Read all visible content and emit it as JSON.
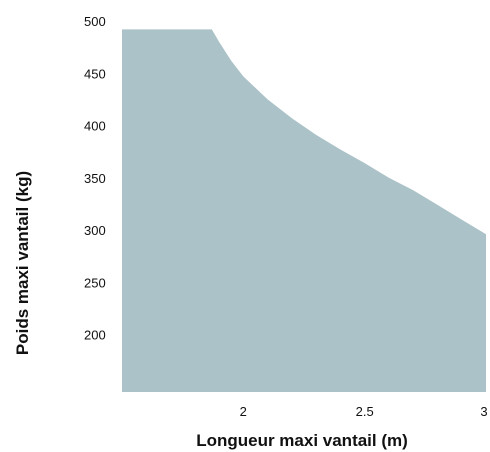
{
  "chart_data": {
    "type": "area",
    "xlabel": "Longueur maxi vantail (m)",
    "ylabel": "Poids maxi vantail (kg)",
    "xlim": [
      1.5,
      3.0
    ],
    "ylim": [
      145,
      500
    ],
    "x_ticks": [
      {
        "value": 2,
        "label": "2"
      },
      {
        "value": 2.5,
        "label": "2.5"
      },
      {
        "value": 3,
        "label": "3"
      }
    ],
    "y_ticks": [
      {
        "value": 200,
        "label": "200"
      },
      {
        "value": 250,
        "label": "250"
      },
      {
        "value": 300,
        "label": "300"
      },
      {
        "value": 350,
        "label": "350"
      },
      {
        "value": 400,
        "label": "400"
      },
      {
        "value": 450,
        "label": "450"
      },
      {
        "value": 500,
        "label": "500"
      }
    ],
    "grid": false,
    "fill_color": "#abc2c8",
    "series": [
      {
        "x": [
          1.5,
          1.87,
          1.9,
          1.95,
          2.0,
          2.1,
          2.2,
          2.3,
          2.4,
          2.5,
          2.6,
          2.7,
          2.8,
          2.9,
          3.0
        ],
        "y": [
          492,
          492,
          480,
          462,
          447,
          425,
          407,
          391,
          377,
          364,
          350,
          338,
          324,
          310,
          296
        ]
      }
    ]
  }
}
